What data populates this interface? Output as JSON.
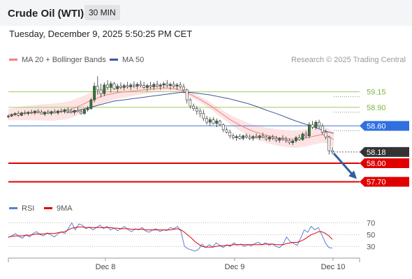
{
  "header": {
    "title": "Crude Oil (WTI)",
    "timeframe": "30 MIN"
  },
  "timestamp": "Tuesday, December 9, 2025 5:50:25 PM CET",
  "legend": {
    "ma20_label": "MA 20 + Bollinger Bands",
    "ma50_label": "MA 50",
    "credit": "Research © 2025 Trading Central",
    "rsi_label": "RSI",
    "rsi_ma_label": "9MA"
  },
  "colors": {
    "ma20": "#f08080",
    "ma50": "#3d5a99",
    "bands": "#fde3e3",
    "candle": "#2e7d32",
    "support": "#e00000",
    "resistance": "#9ccc65",
    "pivot": "#4a7fd4",
    "arrow": "#2f5f9e",
    "rsi": "#5b7fd6",
    "rsi_ma": "#e00000"
  },
  "chart_data": {
    "type": "candlestick",
    "x_ticks": [
      "Dec 8",
      "Dec 9",
      "Dec 10"
    ],
    "ylim": [
      57.55,
      59.55
    ],
    "ohlc": [
      [
        58.75,
        58.78,
        58.72,
        58.76
      ],
      [
        58.76,
        58.8,
        58.74,
        58.78
      ],
      [
        58.78,
        58.82,
        58.76,
        58.8
      ],
      [
        58.8,
        58.84,
        58.75,
        58.77
      ],
      [
        58.77,
        58.83,
        58.76,
        58.81
      ],
      [
        58.81,
        58.85,
        58.78,
        58.8
      ],
      [
        58.8,
        58.84,
        58.77,
        58.82
      ],
      [
        58.82,
        58.86,
        58.79,
        58.81
      ],
      [
        58.81,
        58.85,
        58.78,
        58.84
      ],
      [
        58.84,
        58.87,
        58.8,
        58.82
      ],
      [
        58.82,
        58.86,
        58.79,
        58.79
      ],
      [
        58.79,
        58.84,
        58.76,
        58.82
      ],
      [
        58.82,
        58.86,
        58.79,
        58.8
      ],
      [
        58.8,
        58.85,
        58.77,
        58.83
      ],
      [
        58.83,
        58.87,
        58.8,
        58.81
      ],
      [
        58.81,
        58.86,
        58.78,
        58.84
      ],
      [
        58.84,
        58.88,
        58.81,
        58.83
      ],
      [
        58.83,
        58.88,
        58.8,
        58.86
      ],
      [
        58.86,
        58.9,
        58.82,
        58.84
      ],
      [
        58.84,
        58.88,
        58.8,
        58.82
      ],
      [
        58.82,
        58.86,
        58.78,
        58.85
      ],
      [
        58.85,
        58.9,
        58.82,
        58.83
      ],
      [
        58.83,
        58.87,
        58.78,
        58.8
      ],
      [
        58.8,
        58.88,
        58.78,
        58.86
      ],
      [
        58.86,
        58.92,
        58.83,
        58.88
      ],
      [
        58.88,
        59.05,
        58.86,
        59.02
      ],
      [
        59.02,
        59.3,
        58.98,
        59.24
      ],
      [
        59.24,
        59.4,
        59.1,
        59.18
      ],
      [
        59.18,
        59.28,
        59.06,
        59.12
      ],
      [
        59.12,
        59.3,
        59.08,
        59.26
      ],
      [
        59.26,
        59.34,
        59.18,
        59.22
      ],
      [
        59.22,
        59.32,
        59.14,
        59.28
      ],
      [
        59.28,
        59.31,
        59.18,
        59.2
      ],
      [
        59.2,
        59.28,
        59.15,
        59.24
      ],
      [
        59.24,
        59.3,
        59.19,
        59.22
      ],
      [
        59.22,
        59.28,
        59.17,
        59.25
      ],
      [
        59.25,
        59.31,
        59.2,
        59.23
      ],
      [
        59.23,
        59.29,
        59.18,
        59.26
      ],
      [
        59.26,
        59.32,
        59.21,
        59.24
      ],
      [
        59.24,
        59.3,
        59.19,
        59.27
      ],
      [
        59.27,
        59.33,
        59.22,
        59.25
      ],
      [
        59.25,
        59.31,
        59.2,
        59.22
      ],
      [
        59.22,
        59.28,
        59.16,
        59.25
      ],
      [
        59.25,
        59.31,
        59.19,
        59.23
      ],
      [
        59.23,
        59.3,
        59.18,
        59.27
      ],
      [
        59.27,
        59.33,
        59.22,
        59.24
      ],
      [
        59.24,
        59.29,
        59.18,
        59.26
      ],
      [
        59.26,
        59.31,
        59.21,
        59.28
      ],
      [
        59.28,
        59.34,
        59.22,
        59.25
      ],
      [
        59.25,
        59.3,
        59.18,
        59.27
      ],
      [
        59.27,
        59.32,
        59.21,
        59.24
      ],
      [
        59.24,
        59.29,
        59.18,
        59.26
      ],
      [
        59.26,
        59.31,
        59.2,
        59.23
      ],
      [
        59.23,
        59.28,
        59.15,
        59.18
      ],
      [
        59.18,
        59.2,
        58.96,
        59.02
      ],
      [
        59.02,
        59.05,
        58.88,
        58.92
      ],
      [
        58.92,
        58.96,
        58.84,
        58.88
      ],
      [
        58.88,
        58.92,
        58.78,
        58.84
      ],
      [
        58.84,
        58.88,
        58.74,
        58.8
      ],
      [
        58.8,
        58.86,
        58.68,
        58.72
      ],
      [
        58.72,
        58.76,
        58.62,
        58.66
      ],
      [
        58.66,
        58.74,
        58.6,
        58.7
      ],
      [
        58.7,
        58.74,
        58.62,
        58.64
      ],
      [
        58.64,
        58.72,
        58.58,
        58.68
      ],
      [
        58.68,
        58.7,
        58.6,
        58.62
      ],
      [
        58.62,
        58.64,
        58.5,
        58.54
      ],
      [
        58.54,
        58.58,
        58.48,
        58.5
      ],
      [
        58.5,
        58.54,
        58.4,
        58.44
      ],
      [
        58.44,
        58.48,
        58.38,
        58.41
      ],
      [
        58.41,
        58.46,
        58.36,
        58.43
      ],
      [
        58.43,
        58.47,
        58.38,
        58.4
      ],
      [
        58.4,
        58.46,
        58.37,
        58.44
      ],
      [
        58.44,
        58.48,
        58.39,
        58.42
      ],
      [
        58.42,
        58.46,
        58.37,
        58.4
      ],
      [
        58.4,
        58.45,
        58.36,
        58.43
      ],
      [
        58.43,
        58.48,
        58.4,
        58.41
      ],
      [
        58.41,
        58.46,
        58.37,
        58.44
      ],
      [
        58.44,
        58.49,
        58.4,
        58.42
      ],
      [
        58.42,
        58.45,
        58.36,
        58.39
      ],
      [
        58.39,
        58.44,
        58.35,
        58.42
      ],
      [
        58.42,
        58.46,
        58.37,
        58.4
      ],
      [
        58.4,
        58.44,
        58.34,
        58.37
      ],
      [
        58.37,
        58.42,
        58.33,
        58.4
      ],
      [
        58.4,
        58.45,
        58.36,
        58.38
      ],
      [
        58.38,
        58.43,
        58.33,
        58.36
      ],
      [
        58.36,
        58.4,
        58.3,
        58.33
      ],
      [
        58.33,
        58.38,
        58.29,
        58.36
      ],
      [
        58.36,
        58.44,
        58.33,
        58.41
      ],
      [
        58.41,
        58.46,
        58.36,
        58.38
      ],
      [
        58.38,
        58.5,
        58.36,
        58.47
      ],
      [
        58.47,
        58.52,
        58.4,
        58.44
      ],
      [
        58.44,
        58.66,
        58.4,
        58.62
      ],
      [
        58.62,
        58.68,
        58.55,
        58.58
      ],
      [
        58.58,
        58.69,
        58.54,
        58.66
      ],
      [
        58.66,
        58.7,
        58.56,
        58.6
      ],
      [
        58.6,
        58.64,
        58.46,
        58.5
      ],
      [
        58.5,
        58.54,
        58.38,
        58.42
      ],
      [
        58.42,
        58.44,
        58.14,
        58.2
      ],
      [
        58.2,
        58.26,
        58.14,
        58.18
      ]
    ],
    "ma20": [
      58.78,
      58.79,
      58.8,
      58.81,
      58.81,
      58.82,
      58.82,
      58.82,
      58.83,
      58.84,
      58.86,
      58.9,
      58.94,
      58.99,
      59.03,
      59.07,
      59.1,
      59.12,
      59.14,
      59.15,
      59.16,
      59.17,
      59.18,
      59.19,
      59.2,
      59.21,
      59.21,
      59.2,
      59.18,
      59.14,
      59.09,
      59.04,
      58.98,
      58.92,
      58.85,
      58.78,
      58.71,
      58.65,
      58.6,
      58.55,
      58.51,
      58.48,
      58.45,
      58.43,
      58.41,
      58.4,
      58.39,
      58.39,
      58.4,
      58.42,
      58.44,
      58.46,
      58.44,
      58.38
    ],
    "ma50": [
      58.81,
      58.84,
      58.88,
      58.92,
      58.96,
      59.0,
      59.02,
      59.04,
      59.06,
      59.08,
      59.1,
      59.12,
      59.14,
      59.14,
      59.12,
      59.1,
      59.07,
      59.04,
      59.0,
      58.96,
      58.91,
      58.85,
      58.8,
      58.74,
      58.68,
      58.63,
      58.58,
      58.52,
      58.48
    ],
    "levels": [
      {
        "label": "59.15",
        "value": 59.15,
        "kind": "resistance"
      },
      {
        "label": "58.90",
        "value": 58.9,
        "kind": "resistance"
      },
      {
        "label": "58.60",
        "value": 58.6,
        "kind": "pivot"
      },
      {
        "label": "58.18",
        "value": 58.18,
        "kind": "last"
      },
      {
        "label": "58.00",
        "value": 58.0,
        "kind": "support"
      },
      {
        "label": "57.70",
        "value": 57.7,
        "kind": "support"
      }
    ],
    "rsi": {
      "ticks": [
        "70",
        "50",
        "30"
      ],
      "ylim": [
        15,
        80
      ],
      "values": [
        45,
        48,
        52,
        47,
        44,
        50,
        46,
        52,
        55,
        50,
        48,
        53,
        50,
        46,
        51,
        55,
        52,
        60,
        70,
        58,
        68,
        66,
        60,
        63,
        58,
        62,
        66,
        60,
        64,
        58,
        61,
        57,
        60,
        64,
        58,
        55,
        60,
        58,
        62,
        56,
        54,
        58,
        60,
        55,
        58,
        57,
        62,
        60,
        64,
        56,
        30,
        26,
        24,
        22,
        25,
        34,
        28,
        33,
        29,
        36,
        32,
        28,
        33,
        30,
        36,
        32,
        34,
        30,
        33,
        31,
        35,
        37,
        33,
        36,
        32,
        34,
        30,
        28,
        34,
        46,
        38,
        35,
        32,
        44,
        58,
        54,
        64,
        58,
        62,
        50,
        36,
        28,
        27
      ],
      "ma": [
        46,
        47,
        48,
        48,
        48,
        49,
        49,
        50,
        51,
        51,
        51,
        52,
        52,
        52,
        53,
        54,
        55,
        58,
        61,
        62,
        63,
        63,
        62,
        62,
        62,
        62,
        62,
        62,
        62,
        62,
        61,
        61,
        60,
        60,
        60,
        59,
        59,
        59,
        59,
        58,
        58,
        58,
        58,
        58,
        58,
        58,
        58,
        59,
        60,
        58,
        54,
        49,
        44,
        38,
        34,
        30,
        29,
        29,
        29,
        30,
        31,
        31,
        32,
        32,
        33,
        33,
        33,
        33,
        33,
        33,
        33,
        33,
        33,
        34,
        34,
        34,
        33,
        33,
        33,
        35,
        36,
        37,
        37,
        39,
        42,
        46,
        50,
        52,
        55,
        55,
        52,
        48,
        42
      ]
    }
  }
}
